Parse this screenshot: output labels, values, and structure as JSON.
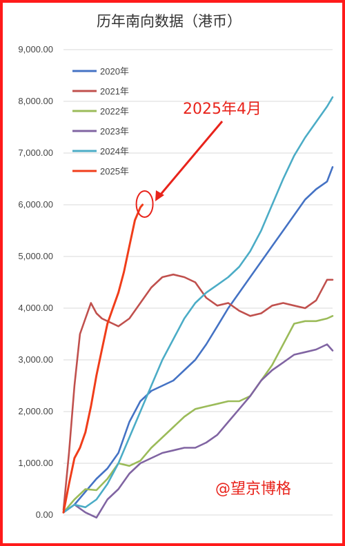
{
  "chart_data": {
    "type": "line",
    "title": "历年南向数据（港币）",
    "xlabel": "",
    "ylabel": "",
    "ylim": [
      0,
      9000
    ],
    "ytick_labels": [
      "0.00",
      "1,000.00",
      "2,000.00",
      "3,000.00",
      "4,000.00",
      "5,000.00",
      "6,000.00",
      "7,000.00",
      "8,000.00",
      "9,000.00"
    ],
    "yticks": [
      0,
      1000,
      2000,
      3000,
      4000,
      5000,
      6000,
      7000,
      8000,
      9000
    ],
    "grid": true,
    "legend_position": "top-left",
    "x_unit": "trading day",
    "x_range": [
      0,
      245
    ],
    "series": [
      {
        "name": "2020年",
        "color": "#4472c4",
        "x": [
          0,
          10,
          20,
          30,
          40,
          50,
          60,
          70,
          80,
          90,
          100,
          110,
          120,
          130,
          140,
          150,
          160,
          170,
          180,
          190,
          200,
          210,
          220,
          230,
          240,
          245
        ],
        "values": [
          50,
          200,
          450,
          700,
          900,
          1200,
          1800,
          2200,
          2400,
          2500,
          2600,
          2800,
          3000,
          3300,
          3650,
          4000,
          4300,
          4600,
          4900,
          5200,
          5500,
          5800,
          6100,
          6300,
          6450,
          6730
        ]
      },
      {
        "name": "2021年",
        "color": "#c0504d",
        "x": [
          0,
          5,
          10,
          15,
          20,
          25,
          30,
          35,
          40,
          45,
          50,
          60,
          70,
          80,
          90,
          100,
          110,
          120,
          130,
          140,
          150,
          160,
          170,
          180,
          190,
          200,
          210,
          220,
          230,
          240,
          245
        ],
        "values": [
          100,
          1200,
          2500,
          3500,
          3800,
          4100,
          3900,
          3800,
          3750,
          3700,
          3650,
          3800,
          4100,
          4400,
          4600,
          4650,
          4600,
          4500,
          4200,
          4050,
          4100,
          3950,
          3850,
          3900,
          4050,
          4100,
          4050,
          4000,
          4150,
          4550,
          4550
        ]
      },
      {
        "name": "2022年",
        "color": "#9bbb59",
        "x": [
          0,
          10,
          20,
          30,
          40,
          50,
          60,
          70,
          80,
          90,
          100,
          110,
          120,
          130,
          140,
          150,
          160,
          170,
          180,
          190,
          200,
          210,
          220,
          230,
          240,
          245
        ],
        "values": [
          50,
          300,
          500,
          480,
          700,
          1000,
          950,
          1050,
          1300,
          1500,
          1700,
          1900,
          2050,
          2100,
          2150,
          2200,
          2200,
          2300,
          2600,
          2900,
          3300,
          3700,
          3750,
          3750,
          3800,
          3850
        ]
      },
      {
        "name": "2023年",
        "color": "#8064a2",
        "x": [
          0,
          10,
          20,
          30,
          40,
          50,
          60,
          70,
          80,
          90,
          100,
          110,
          120,
          130,
          140,
          150,
          160,
          170,
          180,
          190,
          200,
          210,
          220,
          230,
          240,
          245
        ],
        "values": [
          50,
          200,
          50,
          -50,
          300,
          500,
          800,
          1000,
          1100,
          1200,
          1250,
          1300,
          1300,
          1400,
          1550,
          1800,
          2050,
          2300,
          2600,
          2800,
          2950,
          3100,
          3150,
          3200,
          3300,
          3180
        ]
      },
      {
        "name": "2024年",
        "color": "#4bacc6",
        "x": [
          0,
          10,
          20,
          30,
          40,
          50,
          60,
          70,
          80,
          90,
          100,
          110,
          120,
          130,
          140,
          150,
          160,
          170,
          180,
          190,
          200,
          210,
          220,
          230,
          240,
          245
        ],
        "values": [
          50,
          200,
          150,
          300,
          600,
          1000,
          1500,
          2000,
          2500,
          3000,
          3400,
          3800,
          4100,
          4300,
          4450,
          4600,
          4800,
          5100,
          5500,
          6000,
          6500,
          6950,
          7300,
          7600,
          7900,
          8080
        ]
      },
      {
        "name": "2025年",
        "color": "#f03d1a",
        "x": [
          0,
          5,
          10,
          15,
          20,
          25,
          30,
          35,
          40,
          45,
          50,
          55,
          60,
          65,
          70,
          72
        ],
        "values": [
          50,
          600,
          1100,
          1300,
          1600,
          2100,
          2700,
          3200,
          3700,
          4000,
          4300,
          4700,
          5200,
          5700,
          5950,
          6000
        ]
      }
    ]
  },
  "annotation": {
    "label": "2025年4月"
  },
  "watermark": "@望京博格"
}
